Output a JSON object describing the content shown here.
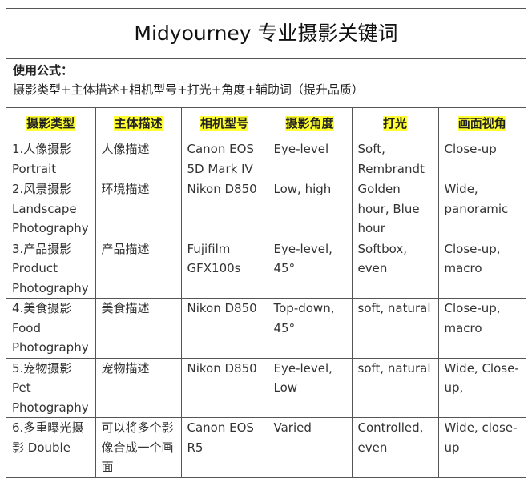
{
  "title": "Midyourney 专业摄影关键词",
  "formula": {
    "label": "使用公式：",
    "text": "摄影类型+主体描述+相机型号+打光+角度+辅助词（提升品质）"
  },
  "highlight_color": "#ffff33",
  "headers": [
    "摄影类型",
    "主体描述",
    "相机型号",
    "摄影角度",
    "打光",
    "画面视角"
  ],
  "rows": [
    [
      "1.人像摄影 Portrait",
      "人像描述",
      "Canon EOS 5D Mark IV",
      "Eye-level",
      "Soft, Rembrandt",
      "Close-up"
    ],
    [
      "2.风景摄影 Landscape Photography",
      "环境描述",
      "Nikon D850",
      "Low, high",
      "Golden hour, Blue hour",
      "Wide, panoramic"
    ],
    [
      "3.产品摄影 Product Photography",
      "产品描述",
      "Fujifilm GFX100s",
      "Eye-level, 45°",
      "Softbox, even",
      "Close-up, macro"
    ],
    [
      "4.美食摄影 Food Photography",
      "美食描述",
      "Nikon D850",
      "Top-down, 45°",
      "soft, natural",
      "Close-up, macro"
    ],
    [
      "5.宠物摄影 Pet Photography",
      "宠物描述",
      "Nikon D850",
      "Eye-level, Low",
      "soft, natural",
      "Wide, Close-up,"
    ],
    [
      "6.多重曝光摄影 Double",
      "可以将多个影像合成一个画面",
      "Canon EOS R5",
      "Varied",
      "Controlled, even",
      "Wide, close-up"
    ]
  ]
}
